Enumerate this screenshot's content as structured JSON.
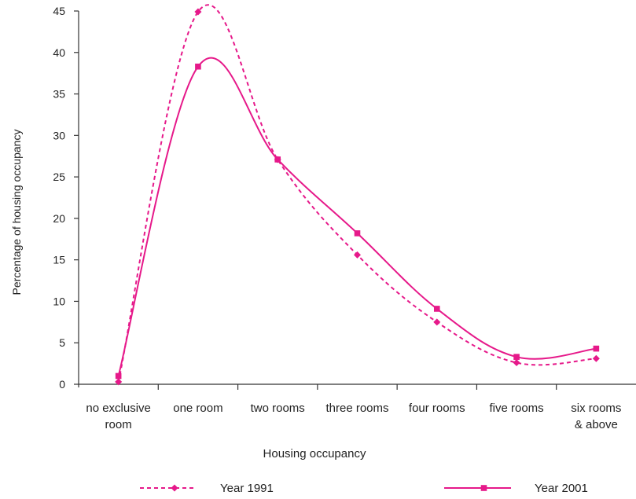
{
  "chart_data": {
    "type": "line",
    "categories": [
      "no exclusive room",
      "one room",
      "two rooms",
      "three rooms",
      "four rooms",
      "five rooms",
      "six rooms & above"
    ],
    "category_lines": [
      [
        "no exclusive",
        "room"
      ],
      [
        "one room"
      ],
      [
        "two rooms"
      ],
      [
        "three rooms"
      ],
      [
        "four rooms"
      ],
      [
        "five rooms"
      ],
      [
        "six rooms",
        "& above"
      ]
    ],
    "series": [
      {
        "name": "Year 1991",
        "values": [
          0.3,
          44.9,
          27.1,
          15.6,
          7.5,
          2.6,
          3.1
        ],
        "color": "#e6198a",
        "dash": "dashed",
        "marker": "diamond"
      },
      {
        "name": "Year 2001",
        "values": [
          1.0,
          38.3,
          27.1,
          18.2,
          9.1,
          3.3,
          4.3
        ],
        "color": "#e6198a",
        "dash": "solid",
        "marker": "square"
      }
    ],
    "title": "",
    "xlabel": "Housing occupancy",
    "ylabel": "Percentage of housing occupancy",
    "ylim": [
      0,
      45
    ],
    "yticks": [
      0,
      5,
      10,
      15,
      20,
      25,
      30,
      35,
      40,
      45
    ],
    "grid": false,
    "legend": "bottom"
  }
}
